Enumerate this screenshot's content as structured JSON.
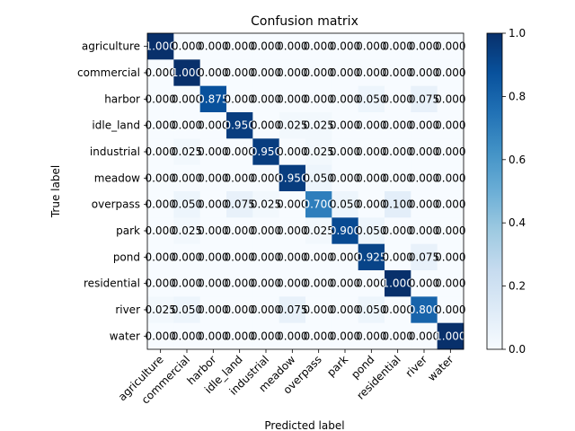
{
  "chart_data": {
    "type": "heatmap",
    "title": "Confusion matrix",
    "xlabel": "Predicted label",
    "ylabel": "True label",
    "categories": [
      "agriculture",
      "commercial",
      "harbor",
      "idle_land",
      "industrial",
      "meadow",
      "overpass",
      "park",
      "pond",
      "residential",
      "river",
      "water"
    ],
    "cell_labels": [
      [
        "1.000",
        "0.000",
        "0.000",
        "0.000",
        "0.000",
        "0.000",
        "0.000",
        "0.000",
        "0.000",
        "0.000",
        "0.000",
        "0.000"
      ],
      [
        "0.000",
        "1.000",
        "0.000",
        "0.000",
        "0.000",
        "0.000",
        "0.000",
        "0.000",
        "0.000",
        "0.000",
        "0.000",
        "0.000"
      ],
      [
        "0.000",
        "0.000",
        "0.875",
        "0.000",
        "0.000",
        "0.000",
        "0.000",
        "0.000",
        "0.050",
        "0.000",
        "0.075",
        "0.000"
      ],
      [
        "0.000",
        "0.000",
        "0.000",
        "0.950",
        "0.000",
        "0.025",
        "0.025",
        "0.000",
        "0.000",
        "0.000",
        "0.000",
        "0.000"
      ],
      [
        "0.000",
        "0.025",
        "0.000",
        "0.000",
        "0.950",
        "0.000",
        "0.025",
        "0.000",
        "0.000",
        "0.000",
        "0.000",
        "0.000"
      ],
      [
        "0.000",
        "0.000",
        "0.000",
        "0.000",
        "0.000",
        "0.950",
        "0.050",
        "0.000",
        "0.000",
        "0.000",
        "0.000",
        "0.000"
      ],
      [
        "0.000",
        "0.050",
        "0.000",
        "0.075",
        "0.025",
        "0.000",
        "0.700",
        "0.050",
        "0.000",
        "0.100",
        "0.000",
        "0.000"
      ],
      [
        "0.000",
        "0.025",
        "0.000",
        "0.000",
        "0.000",
        "0.000",
        "0.025",
        "0.900",
        "0.050",
        "0.000",
        "0.000",
        "0.000"
      ],
      [
        "0.000",
        "0.000",
        "0.000",
        "0.000",
        "0.000",
        "0.000",
        "0.000",
        "0.000",
        "0.925",
        "0.000",
        "0.075",
        "0.000"
      ],
      [
        "0.000",
        "0.000",
        "0.000",
        "0.000",
        "0.000",
        "0.000",
        "0.000",
        "0.000",
        "0.000",
        "1.000",
        "0.000",
        "0.000"
      ],
      [
        "0.025",
        "0.050",
        "0.000",
        "0.000",
        "0.000",
        "0.075",
        "0.000",
        "0.000",
        "0.050",
        "0.000",
        "0.800",
        "0.000"
      ],
      [
        "0.000",
        "0.000",
        "0.000",
        "0.000",
        "0.000",
        "0.000",
        "0.000",
        "0.000",
        "0.000",
        "0.000",
        "0.000",
        "1.000"
      ]
    ],
    "colorbar": {
      "range": [
        0.0,
        1.0
      ],
      "ticks": [
        "0.0",
        "0.2",
        "0.4",
        "0.6",
        "0.8",
        "1.0"
      ]
    },
    "colormap": [
      "#f7fbff",
      "#deebf7",
      "#c6dbef",
      "#9ecae1",
      "#6baed6",
      "#4292c6",
      "#2171b5",
      "#08519c",
      "#08306b"
    ],
    "grid": false
  }
}
